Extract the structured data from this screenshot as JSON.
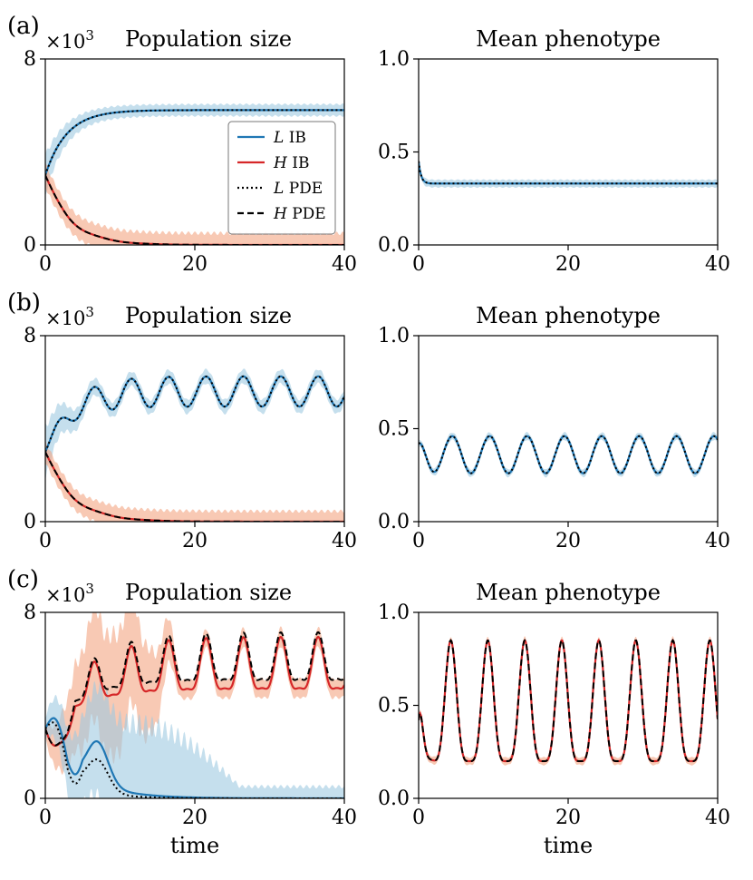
{
  "figure": {
    "colors": {
      "L": "#1f77b4",
      "L_band": "#9ecae1",
      "H": "#d62728",
      "H_band": "#f4a582",
      "pde": "#000000"
    },
    "legend": {
      "location": "center-right of panel (a) population size",
      "entries": [
        {
          "var": "L",
          "rest": " IB",
          "style": "solid",
          "color": "#1f77b4"
        },
        {
          "var": "H",
          "rest": " IB",
          "style": "solid",
          "color": "#d62728"
        },
        {
          "var": "L",
          "rest": " PDE",
          "style": "dotted",
          "color": "#000000"
        },
        {
          "var": "H",
          "rest": " PDE",
          "style": "dashed",
          "color": "#000000"
        }
      ]
    }
  },
  "chart_data": [
    {
      "id": "a-pop",
      "panel_label": "(a)",
      "type": "line",
      "title": "Population size",
      "xlabel": "",
      "ylabel": "",
      "xlim": [
        0,
        40
      ],
      "ylim": [
        0,
        8
      ],
      "xticks": [
        "0",
        "20",
        "40"
      ],
      "yticks": [
        "0",
        "8"
      ],
      "multiplier_base": "×10",
      "multiplier_exp": "3",
      "series": [
        {
          "name": "L IB",
          "kind": "exp_approach",
          "start": 3.0,
          "end": 5.8,
          "rate": 0.35,
          "band_halfwidth": 0.25,
          "band_early_extra": 0.6
        },
        {
          "name": "H IB",
          "kind": "decay",
          "start": 3.0,
          "rate": 0.3,
          "band_halfwidth": 0.5
        },
        {
          "name": "L PDE",
          "same_as": "L IB"
        },
        {
          "name": "H PDE",
          "same_as": "H IB"
        }
      ]
    },
    {
      "id": "a-phen",
      "panel_label": "",
      "type": "line",
      "title": "Mean phenotype",
      "xlabel": "",
      "ylabel": "",
      "xlim": [
        0,
        40
      ],
      "ylim": [
        0.0,
        1.0
      ],
      "xticks": [
        "0",
        "20",
        "40"
      ],
      "yticks": [
        "0.0",
        "0.5",
        "1.0"
      ],
      "series": [
        {
          "name": "L IB",
          "kind": "exp_approach",
          "start": 0.45,
          "end": 0.33,
          "rate": 3.0,
          "band_halfwidth": 0.02
        },
        {
          "name": "L PDE",
          "same_as": "L IB"
        }
      ]
    },
    {
      "id": "b-pop",
      "panel_label": "(b)",
      "type": "line",
      "title": "Population size",
      "xlabel": "",
      "ylabel": "",
      "xlim": [
        0,
        40
      ],
      "ylim": [
        0,
        8
      ],
      "xticks": [
        "0",
        "20",
        "40"
      ],
      "yticks": [
        "0",
        "8"
      ],
      "multiplier_base": "×10",
      "multiplier_exp": "3",
      "series": [
        {
          "name": "L IB",
          "kind": "oscillating_growth",
          "start": 3.0,
          "mean": 5.6,
          "amplitude": 0.65,
          "period": 5.0,
          "phase_peak": 1.5,
          "rate": 0.3,
          "band_halfwidth": 0.3,
          "band_early_extra": 0.8
        },
        {
          "name": "H IB",
          "kind": "decay",
          "start": 3.0,
          "rate": 0.28,
          "band_halfwidth": 0.45
        },
        {
          "name": "L PDE",
          "same_as": "L IB"
        },
        {
          "name": "H PDE",
          "same_as": "H IB"
        }
      ]
    },
    {
      "id": "b-phen",
      "panel_label": "",
      "type": "line",
      "title": "Mean phenotype",
      "xlabel": "",
      "ylabel": "",
      "xlim": [
        0,
        40
      ],
      "ylim": [
        0.0,
        1.0
      ],
      "xticks": [
        "0",
        "20",
        "40"
      ],
      "yticks": [
        "0.0",
        "0.5",
        "1.0"
      ],
      "series": [
        {
          "name": "L IB",
          "kind": "oscillation",
          "mean": 0.36,
          "amplitude": 0.1,
          "period": 5.0,
          "phase_peak": 4.5,
          "start": 0.42,
          "band_halfwidth": 0.02
        },
        {
          "name": "L PDE",
          "same_as": "L IB"
        }
      ]
    },
    {
      "id": "c-pop",
      "panel_label": "(c)",
      "type": "line",
      "title": "Population size",
      "xlabel": "time",
      "ylabel": "",
      "xlim": [
        0,
        40
      ],
      "ylim": [
        0,
        8
      ],
      "xticks": [
        "0",
        "20",
        "40"
      ],
      "yticks": [
        "0",
        "8"
      ],
      "multiplier_base": "×10",
      "multiplier_exp": "3",
      "series": [
        {
          "name": "H IB",
          "kind": "double_peak_oscillation",
          "start": 3.0,
          "mean": 5.5,
          "amplitude_main": 1.1,
          "amplitude_sub": 0.35,
          "period": 5.0,
          "phase_peak": 1.5,
          "rate": 0.2,
          "band_halfwidth": 0.4,
          "band_wide_until": 18,
          "band_wide_extra": 2.2
        },
        {
          "name": "L IB",
          "kind": "pulse_decay",
          "start": 3.0,
          "bump": 1.8,
          "rate": 0.22,
          "band_halfwidth": 0.5,
          "band_wide_until": 26,
          "band_wide_extra": 2.5
        },
        {
          "name": "L PDE",
          "kind": "pulse_decay",
          "start": 3.0,
          "bump": 1.3,
          "rate": 0.3
        },
        {
          "name": "H PDE",
          "kind": "double_peak_oscillation",
          "start": 3.0,
          "mean": 5.8,
          "amplitude_main": 1.0,
          "amplitude_sub": 0.35,
          "period": 5.0,
          "phase_peak": 1.5,
          "rate": 0.2
        }
      ]
    },
    {
      "id": "c-phen",
      "panel_label": "",
      "type": "line",
      "title": "Mean phenotype",
      "xlabel": "time",
      "ylabel": "",
      "xlim": [
        0,
        40
      ],
      "ylim": [
        0.0,
        1.0
      ],
      "xticks": [
        "0",
        "20",
        "40"
      ],
      "yticks": [
        "0.0",
        "0.5",
        "1.0"
      ],
      "series": [
        {
          "name": "H IB",
          "kind": "sharp_oscillation",
          "low": 0.2,
          "high": 0.85,
          "period": 4.95,
          "phase_peak": 4.3,
          "start": 0.42,
          "band_halfwidth": 0.02
        },
        {
          "name": "H PDE",
          "same_as": "H IB"
        }
      ]
    }
  ]
}
